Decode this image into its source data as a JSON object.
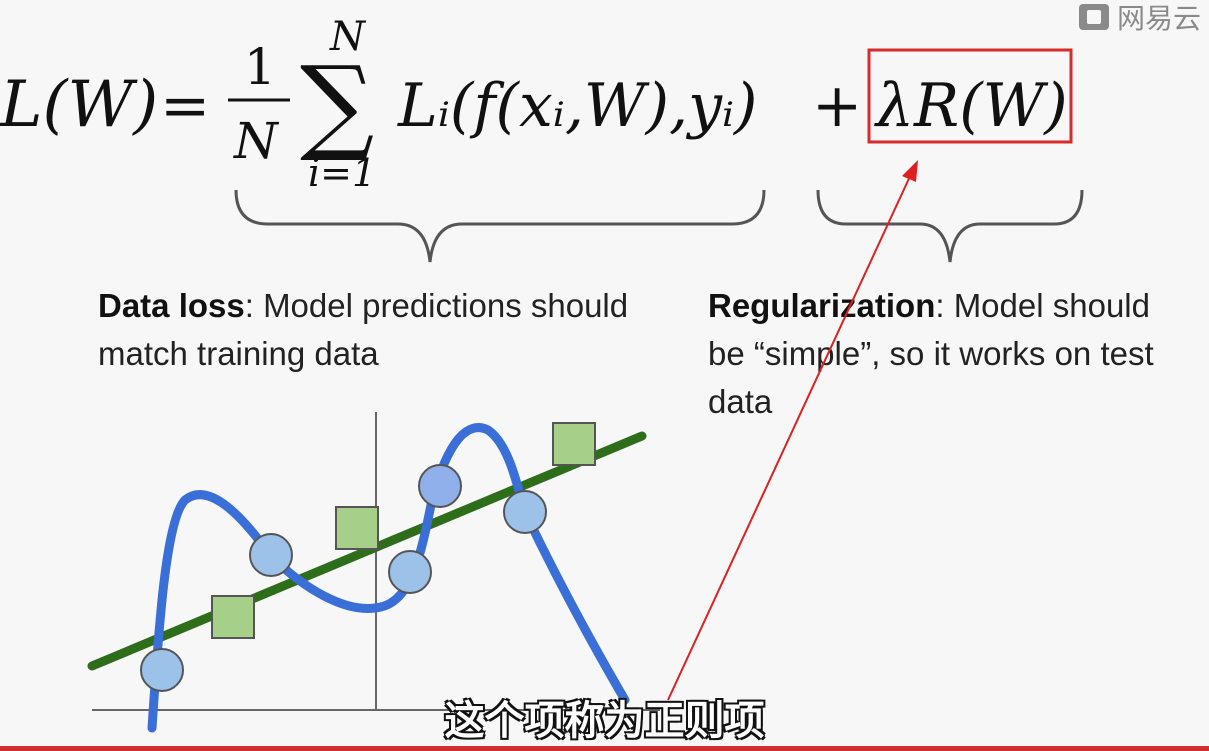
{
  "watermark": {
    "text": "网易云"
  },
  "formula": {
    "lhs": "L(W)",
    "eq": "=",
    "frac_num": "1",
    "frac_den": "N",
    "sum": "∑",
    "sum_top": "N",
    "sum_bottom": "i=1",
    "data_term": "Lᵢ(f(xᵢ,W),yᵢ)",
    "plus": "+",
    "reg_term": "λR(W)"
  },
  "captions": {
    "data_loss_title": "Data loss",
    "data_loss_text": ": Model predictions should match training data",
    "reg_title": "Regularization",
    "reg_text": ": Model should be “simple”, so it works on test data"
  },
  "subtitle": "这个项称为正则项",
  "colors": {
    "highlight_box": "#d92b2b",
    "annotation_arrow": "#e02020",
    "overfit_curve": "#3a6fd8",
    "linear_fit": "#2e6e1b",
    "circle_points": "#9cc2ea",
    "square_points": "#a6d08a"
  },
  "icons": {
    "watermark_logo": "netease-logo-icon"
  }
}
